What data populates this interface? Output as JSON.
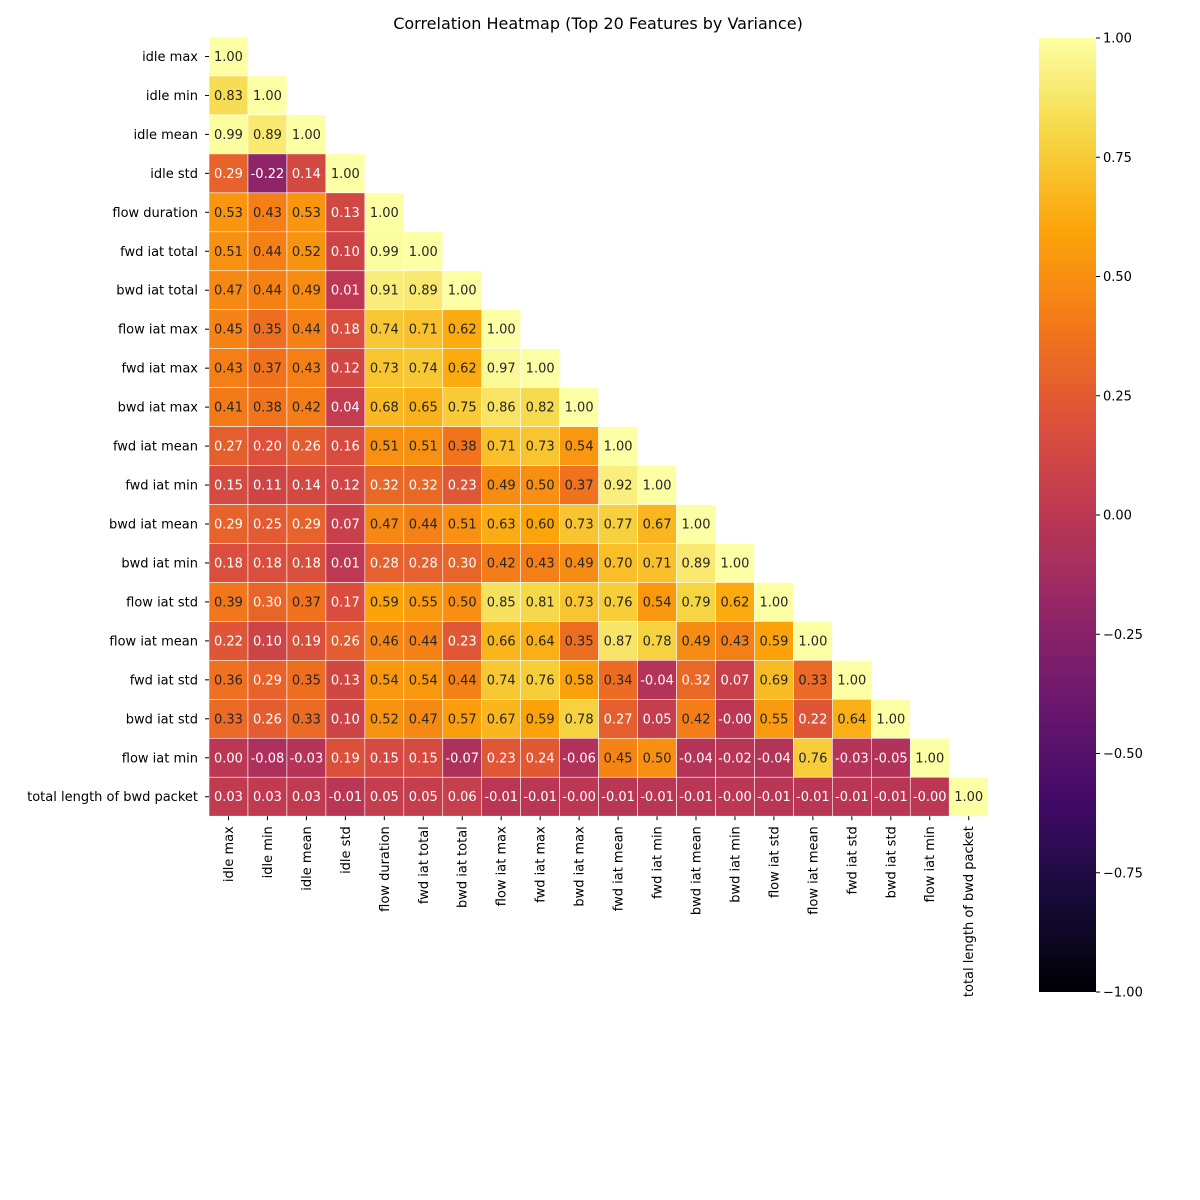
{
  "chart_data": {
    "type": "heatmap",
    "title": "Correlation Heatmap (Top 20 Features by Variance)",
    "colormap": "inferno",
    "vmin": -1,
    "vmax": 1,
    "mask": "upper-triangle",
    "labels": [
      "idle max",
      "idle min",
      "idle mean",
      "idle std",
      "flow duration",
      "fwd iat total",
      "bwd iat total",
      "flow iat max",
      "fwd iat max",
      "bwd iat max",
      "fwd iat mean",
      "fwd iat min",
      "bwd iat mean",
      "bwd iat min",
      "flow iat std",
      "flow iat mean",
      "fwd iat std",
      "bwd iat std",
      "flow iat min",
      "total length of bwd packet"
    ],
    "matrix": [
      [
        1.0
      ],
      [
        0.83,
        1.0
      ],
      [
        0.99,
        0.89,
        1.0
      ],
      [
        0.29,
        -0.22,
        0.14,
        1.0
      ],
      [
        0.53,
        0.43,
        0.53,
        0.13,
        1.0
      ],
      [
        0.51,
        0.44,
        0.52,
        0.1,
        0.99,
        1.0
      ],
      [
        0.47,
        0.44,
        0.49,
        0.01,
        0.91,
        0.89,
        1.0
      ],
      [
        0.45,
        0.35,
        0.44,
        0.18,
        0.74,
        0.71,
        0.62,
        1.0
      ],
      [
        0.43,
        0.37,
        0.43,
        0.12,
        0.73,
        0.74,
        0.62,
        0.97,
        1.0
      ],
      [
        0.41,
        0.38,
        0.42,
        0.04,
        0.68,
        0.65,
        0.75,
        0.86,
        0.82,
        1.0
      ],
      [
        0.27,
        0.2,
        0.26,
        0.16,
        0.51,
        0.51,
        0.38,
        0.71,
        0.73,
        0.54,
        1.0
      ],
      [
        0.15,
        0.11,
        0.14,
        0.12,
        0.32,
        0.32,
        0.23,
        0.49,
        0.5,
        0.37,
        0.92,
        1.0
      ],
      [
        0.29,
        0.25,
        0.29,
        0.07,
        0.47,
        0.44,
        0.51,
        0.63,
        0.6,
        0.73,
        0.77,
        0.67,
        1.0
      ],
      [
        0.18,
        0.18,
        0.18,
        0.01,
        0.28,
        0.28,
        0.3,
        0.42,
        0.43,
        0.49,
        0.7,
        0.71,
        0.89,
        1.0
      ],
      [
        0.39,
        0.3,
        0.37,
        0.17,
        0.59,
        0.55,
        0.5,
        0.85,
        0.81,
        0.73,
        0.76,
        0.54,
        0.79,
        0.62,
        1.0
      ],
      [
        0.22,
        0.1,
        0.19,
        0.26,
        0.46,
        0.44,
        0.23,
        0.66,
        0.64,
        0.35,
        0.87,
        0.78,
        0.49,
        0.43,
        0.59,
        1.0
      ],
      [
        0.36,
        0.29,
        0.35,
        0.13,
        0.54,
        0.54,
        0.44,
        0.74,
        0.76,
        0.58,
        0.34,
        -0.04,
        0.32,
        0.07,
        0.69,
        0.33,
        1.0
      ],
      [
        0.33,
        0.26,
        0.33,
        0.1,
        0.52,
        0.47,
        0.57,
        0.67,
        0.59,
        0.78,
        0.27,
        0.05,
        0.42,
        -0.0,
        0.55,
        0.22,
        0.64,
        1.0
      ],
      [
        0.0,
        -0.08,
        -0.03,
        0.19,
        0.15,
        0.15,
        -0.07,
        0.23,
        0.24,
        -0.06,
        0.45,
        0.5,
        -0.04,
        -0.02,
        -0.04,
        0.76,
        -0.03,
        -0.05,
        1.0
      ],
      [
        0.03,
        0.03,
        0.03,
        -0.01,
        0.05,
        0.05,
        0.06,
        -0.01,
        -0.01,
        -0.0,
        -0.01,
        -0.01,
        -0.01,
        -0.0,
        -0.01,
        -0.01,
        -0.01,
        -0.01,
        -0.0,
        1.0
      ]
    ],
    "colorbar": {
      "ticks": [
        1.0,
        0.75,
        0.5,
        0.25,
        0.0,
        -0.25,
        -0.5,
        -0.75,
        -1.0
      ],
      "tick_labels": [
        "1.00",
        "0.75",
        "0.50",
        "0.25",
        "0.00",
        "−0.25",
        "−0.50",
        "−0.75",
        "−1.00"
      ]
    }
  }
}
